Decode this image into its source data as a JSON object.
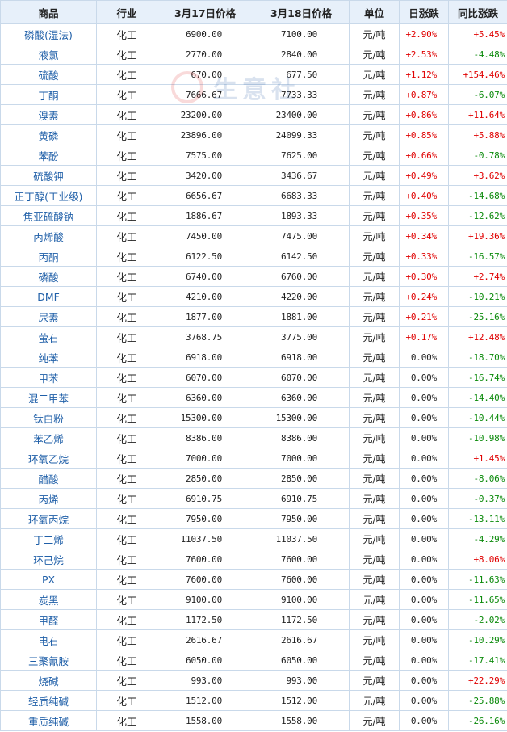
{
  "header": {
    "product": "商品",
    "industry": "行业",
    "price1": "3月17日价格",
    "price2": "3月18日价格",
    "unit": "单位",
    "daily": "日涨跌",
    "yoy": "同比涨跌"
  },
  "watermark": {
    "text": "生意社"
  },
  "rows": [
    {
      "name": "磷酸(湿法)",
      "industry": "化工",
      "p17": "6900.00",
      "p18": "7100.00",
      "unit": "元/吨",
      "daily": "+2.90%",
      "yoy": "+5.45%",
      "daily_dir": "up",
      "yoy_dir": "up"
    },
    {
      "name": "液氯",
      "industry": "化工",
      "p17": "2770.00",
      "p18": "2840.00",
      "unit": "元/吨",
      "daily": "+2.53%",
      "yoy": "-4.48%",
      "daily_dir": "up",
      "yoy_dir": "down"
    },
    {
      "name": "硫酸",
      "industry": "化工",
      "p17": "670.00",
      "p18": "677.50",
      "unit": "元/吨",
      "daily": "+1.12%",
      "yoy": "+154.46%",
      "daily_dir": "up",
      "yoy_dir": "up"
    },
    {
      "name": "丁酮",
      "industry": "化工",
      "p17": "7666.67",
      "p18": "7733.33",
      "unit": "元/吨",
      "daily": "+0.87%",
      "yoy": "-6.07%",
      "daily_dir": "up",
      "yoy_dir": "down"
    },
    {
      "name": "溴素",
      "industry": "化工",
      "p17": "23200.00",
      "p18": "23400.00",
      "unit": "元/吨",
      "daily": "+0.86%",
      "yoy": "+11.64%",
      "daily_dir": "up",
      "yoy_dir": "up"
    },
    {
      "name": "黄磷",
      "industry": "化工",
      "p17": "23896.00",
      "p18": "24099.33",
      "unit": "元/吨",
      "daily": "+0.85%",
      "yoy": "+5.88%",
      "daily_dir": "up",
      "yoy_dir": "up"
    },
    {
      "name": "苯酚",
      "industry": "化工",
      "p17": "7575.00",
      "p18": "7625.00",
      "unit": "元/吨",
      "daily": "+0.66%",
      "yoy": "-0.78%",
      "daily_dir": "up",
      "yoy_dir": "down"
    },
    {
      "name": "硫酸钾",
      "industry": "化工",
      "p17": "3420.00",
      "p18": "3436.67",
      "unit": "元/吨",
      "daily": "+0.49%",
      "yoy": "+3.62%",
      "daily_dir": "up",
      "yoy_dir": "up"
    },
    {
      "name": "正丁醇(工业级)",
      "industry": "化工",
      "p17": "6656.67",
      "p18": "6683.33",
      "unit": "元/吨",
      "daily": "+0.40%",
      "yoy": "-14.68%",
      "daily_dir": "up",
      "yoy_dir": "down"
    },
    {
      "name": "焦亚硫酸钠",
      "industry": "化工",
      "p17": "1886.67",
      "p18": "1893.33",
      "unit": "元/吨",
      "daily": "+0.35%",
      "yoy": "-12.62%",
      "daily_dir": "up",
      "yoy_dir": "down"
    },
    {
      "name": "丙烯酸",
      "industry": "化工",
      "p17": "7450.00",
      "p18": "7475.00",
      "unit": "元/吨",
      "daily": "+0.34%",
      "yoy": "+19.36%",
      "daily_dir": "up",
      "yoy_dir": "up"
    },
    {
      "name": "丙酮",
      "industry": "化工",
      "p17": "6122.50",
      "p18": "6142.50",
      "unit": "元/吨",
      "daily": "+0.33%",
      "yoy": "-16.57%",
      "daily_dir": "up",
      "yoy_dir": "down"
    },
    {
      "name": "磷酸",
      "industry": "化工",
      "p17": "6740.00",
      "p18": "6760.00",
      "unit": "元/吨",
      "daily": "+0.30%",
      "yoy": "+2.74%",
      "daily_dir": "up",
      "yoy_dir": "up"
    },
    {
      "name": "DMF",
      "industry": "化工",
      "p17": "4210.00",
      "p18": "4220.00",
      "unit": "元/吨",
      "daily": "+0.24%",
      "yoy": "-10.21%",
      "daily_dir": "up",
      "yoy_dir": "down"
    },
    {
      "name": "尿素",
      "industry": "化工",
      "p17": "1877.00",
      "p18": "1881.00",
      "unit": "元/吨",
      "daily": "+0.21%",
      "yoy": "-25.16%",
      "daily_dir": "up",
      "yoy_dir": "down"
    },
    {
      "name": "萤石",
      "industry": "化工",
      "p17": "3768.75",
      "p18": "3775.00",
      "unit": "元/吨",
      "daily": "+0.17%",
      "yoy": "+12.48%",
      "daily_dir": "up",
      "yoy_dir": "up"
    },
    {
      "name": "纯苯",
      "industry": "化工",
      "p17": "6918.00",
      "p18": "6918.00",
      "unit": "元/吨",
      "daily": "0.00%",
      "yoy": "-18.70%",
      "daily_dir": "flat",
      "yoy_dir": "down"
    },
    {
      "name": "甲苯",
      "industry": "化工",
      "p17": "6070.00",
      "p18": "6070.00",
      "unit": "元/吨",
      "daily": "0.00%",
      "yoy": "-16.74%",
      "daily_dir": "flat",
      "yoy_dir": "down"
    },
    {
      "name": "混二甲苯",
      "industry": "化工",
      "p17": "6360.00",
      "p18": "6360.00",
      "unit": "元/吨",
      "daily": "0.00%",
      "yoy": "-14.40%",
      "daily_dir": "flat",
      "yoy_dir": "down"
    },
    {
      "name": "钛白粉",
      "industry": "化工",
      "p17": "15300.00",
      "p18": "15300.00",
      "unit": "元/吨",
      "daily": "0.00%",
      "yoy": "-10.44%",
      "daily_dir": "flat",
      "yoy_dir": "down"
    },
    {
      "name": "苯乙烯",
      "industry": "化工",
      "p17": "8386.00",
      "p18": "8386.00",
      "unit": "元/吨",
      "daily": "0.00%",
      "yoy": "-10.98%",
      "daily_dir": "flat",
      "yoy_dir": "down"
    },
    {
      "name": "环氧乙烷",
      "industry": "化工",
      "p17": "7000.00",
      "p18": "7000.00",
      "unit": "元/吨",
      "daily": "0.00%",
      "yoy": "+1.45%",
      "daily_dir": "flat",
      "yoy_dir": "up"
    },
    {
      "name": "醋酸",
      "industry": "化工",
      "p17": "2850.00",
      "p18": "2850.00",
      "unit": "元/吨",
      "daily": "0.00%",
      "yoy": "-8.06%",
      "daily_dir": "flat",
      "yoy_dir": "down"
    },
    {
      "name": "丙烯",
      "industry": "化工",
      "p17": "6910.75",
      "p18": "6910.75",
      "unit": "元/吨",
      "daily": "0.00%",
      "yoy": "-0.37%",
      "daily_dir": "flat",
      "yoy_dir": "down"
    },
    {
      "name": "环氧丙烷",
      "industry": "化工",
      "p17": "7950.00",
      "p18": "7950.00",
      "unit": "元/吨",
      "daily": "0.00%",
      "yoy": "-13.11%",
      "daily_dir": "flat",
      "yoy_dir": "down"
    },
    {
      "name": "丁二烯",
      "industry": "化工",
      "p17": "11037.50",
      "p18": "11037.50",
      "unit": "元/吨",
      "daily": "0.00%",
      "yoy": "-4.29%",
      "daily_dir": "flat",
      "yoy_dir": "down"
    },
    {
      "name": "环己烷",
      "industry": "化工",
      "p17": "7600.00",
      "p18": "7600.00",
      "unit": "元/吨",
      "daily": "0.00%",
      "yoy": "+8.06%",
      "daily_dir": "flat",
      "yoy_dir": "up"
    },
    {
      "name": "PX",
      "industry": "化工",
      "p17": "7600.00",
      "p18": "7600.00",
      "unit": "元/吨",
      "daily": "0.00%",
      "yoy": "-11.63%",
      "daily_dir": "flat",
      "yoy_dir": "down"
    },
    {
      "name": "炭黑",
      "industry": "化工",
      "p17": "9100.00",
      "p18": "9100.00",
      "unit": "元/吨",
      "daily": "0.00%",
      "yoy": "-11.65%",
      "daily_dir": "flat",
      "yoy_dir": "down"
    },
    {
      "name": "甲醛",
      "industry": "化工",
      "p17": "1172.50",
      "p18": "1172.50",
      "unit": "元/吨",
      "daily": "0.00%",
      "yoy": "-2.02%",
      "daily_dir": "flat",
      "yoy_dir": "down"
    },
    {
      "name": "电石",
      "industry": "化工",
      "p17": "2616.67",
      "p18": "2616.67",
      "unit": "元/吨",
      "daily": "0.00%",
      "yoy": "-10.29%",
      "daily_dir": "flat",
      "yoy_dir": "down"
    },
    {
      "name": "三聚氰胺",
      "industry": "化工",
      "p17": "6050.00",
      "p18": "6050.00",
      "unit": "元/吨",
      "daily": "0.00%",
      "yoy": "-17.41%",
      "daily_dir": "flat",
      "yoy_dir": "down"
    },
    {
      "name": "烧碱",
      "industry": "化工",
      "p17": "993.00",
      "p18": "993.00",
      "unit": "元/吨",
      "daily": "0.00%",
      "yoy": "+22.29%",
      "daily_dir": "flat",
      "yoy_dir": "up"
    },
    {
      "name": "轻质纯碱",
      "industry": "化工",
      "p17": "1512.00",
      "p18": "1512.00",
      "unit": "元/吨",
      "daily": "0.00%",
      "yoy": "-25.88%",
      "daily_dir": "flat",
      "yoy_dir": "down"
    },
    {
      "name": "重质纯碱",
      "industry": "化工",
      "p17": "1558.00",
      "p18": "1558.00",
      "unit": "元/吨",
      "daily": "0.00%",
      "yoy": "-26.16%",
      "daily_dir": "flat",
      "yoy_dir": "down"
    }
  ],
  "colors": {
    "up": "#e00000",
    "down": "#0b8a0b",
    "flat": "#222222",
    "header_bg": "#e7f0fa",
    "border": "#c9d9ea",
    "name": "#1f5fa8"
  }
}
